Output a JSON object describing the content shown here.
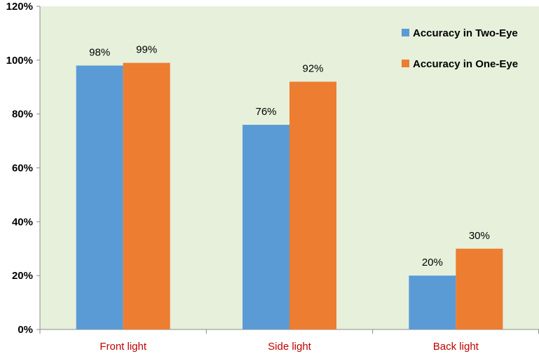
{
  "chart_data": {
    "type": "bar",
    "categories": [
      "Front light",
      "Side light",
      "Back light"
    ],
    "series": [
      {
        "name": "Accuracy in Two-Eye",
        "values": [
          98,
          76,
          20
        ],
        "labels": [
          "98%",
          "76%",
          "20%"
        ],
        "color": "#5b9bd5"
      },
      {
        "name": "Accuracy in One-Eye",
        "values": [
          99,
          92,
          30
        ],
        "labels": [
          "99%",
          "92%",
          "30%"
        ],
        "color": "#ed7d31"
      }
    ],
    "yticks": [
      {
        "value": 0,
        "label": "0%"
      },
      {
        "value": 20,
        "label": "20%"
      },
      {
        "value": 40,
        "label": "40%"
      },
      {
        "value": 60,
        "label": "60%"
      },
      {
        "value": 80,
        "label": "80%"
      },
      {
        "value": 100,
        "label": "100%"
      },
      {
        "value": 120,
        "label": "120%"
      }
    ],
    "ylim": [
      0,
      120
    ],
    "title": "",
    "xlabel": "",
    "ylabel": "",
    "grid": false,
    "legend_position": "top-right",
    "colors": {
      "plot_background": "#e6f0db",
      "category_label": "#c00000",
      "axis": "#8c8c8c"
    }
  }
}
